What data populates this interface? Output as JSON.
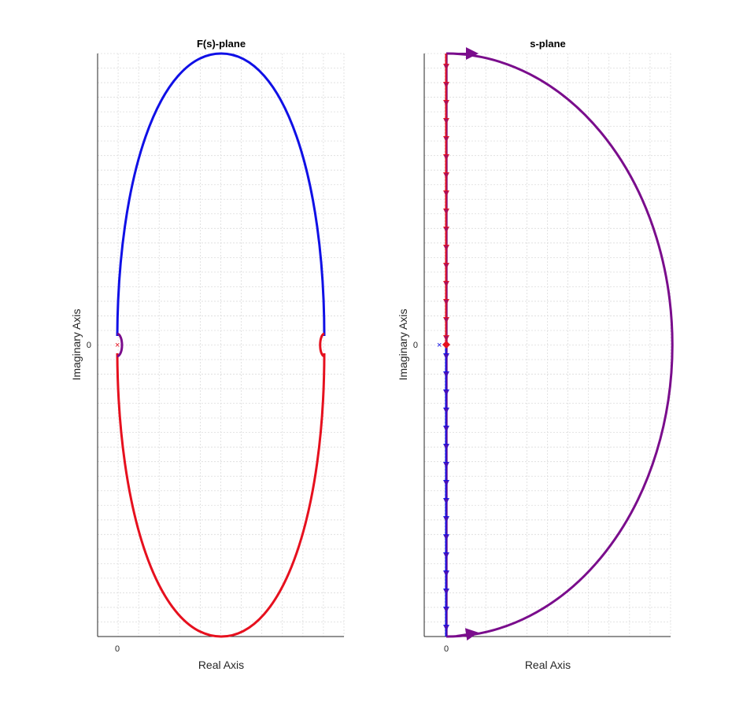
{
  "colors": {
    "positive_branch": "#1010e6",
    "negative_branch": "#e6101e",
    "contour_arc": "#7a0d8c",
    "pole_marker": "#1010e6",
    "fs_pole_marker": "#e6101e",
    "grid": "#dcdcdc",
    "axis": "#262626"
  },
  "chart_data": [
    {
      "type": "line",
      "title": "F(s)-plane",
      "xlabel": "Real Axis",
      "ylabel": "Imaginary Axis",
      "xticks": [
        "0"
      ],
      "yticks": [
        "0"
      ],
      "xlim": [
        -0.1,
        1.1
      ],
      "ylim": [
        -1.0,
        1.0
      ],
      "grid": true,
      "series": [
        {
          "color": "#1010e6",
          "points": [
            [
              0,
              0.02
            ],
            [
              0.02,
              0.4
            ],
            [
              0.1,
              0.75
            ],
            [
              0.25,
              0.96
            ],
            [
              0.5,
              1.0
            ],
            [
              0.75,
              0.96
            ],
            [
              0.9,
              0.75
            ],
            [
              0.98,
              0.4
            ],
            [
              1.0,
              0.02
            ]
          ]
        },
        {
          "color": "#e6101e",
          "points": [
            [
              0,
              -0.02
            ],
            [
              0.02,
              -0.4
            ],
            [
              0.1,
              -0.75
            ],
            [
              0.25,
              -0.96
            ],
            [
              0.5,
              -1.0
            ],
            [
              0.75,
              -0.96
            ],
            [
              0.9,
              -0.75
            ],
            [
              0.98,
              -0.4
            ],
            [
              1.0,
              -0.02
            ]
          ]
        },
        {
          "color": "#7a0d8c",
          "points": [
            [
              0,
              0.03
            ],
            [
              0.02,
              0.02
            ],
            [
              0.02,
              -0.02
            ],
            [
              0,
              -0.03
            ]
          ]
        },
        {
          "color": "#e6101e",
          "points": [
            [
              1.0,
              0.03
            ],
            [
              0.98,
              0.02
            ],
            [
              0.98,
              -0.02
            ],
            [
              1.0,
              -0.03
            ]
          ]
        }
      ],
      "markers": [
        {
          "symbol": "x",
          "color": "#e6101e",
          "x": 0,
          "y": 0
        }
      ]
    },
    {
      "type": "line",
      "title": "s-plane",
      "xlabel": "Real Axis",
      "ylabel": "Imaginary Axis",
      "xticks": [
        "0"
      ],
      "yticks": [
        "0"
      ],
      "xlim": [
        -0.1,
        1.0
      ],
      "ylim": [
        -1.0,
        1.0
      ],
      "grid": true,
      "series": [
        {
          "color": "#e6101e",
          "points": [
            [
              0,
              1.0
            ],
            [
              0,
              0.0
            ]
          ],
          "arrows": "down"
        },
        {
          "color": "#1010e6",
          "points": [
            [
              0,
              0.0
            ],
            [
              0,
              -1.0
            ]
          ],
          "arrows": "down"
        },
        {
          "color": "#7a0d8c",
          "shape": "right-semicircle",
          "radius": 1.0
        },
        {
          "color": "#7a0d8c",
          "points": [
            [
              0,
              1.0
            ],
            [
              0,
              -1.0
            ]
          ],
          "arrows": "down"
        }
      ],
      "markers": [
        {
          "symbol": "x",
          "color": "#1010e6",
          "x": -0.03,
          "y": 0
        },
        {
          "symbol": "diamond",
          "color": "#e6101e",
          "x": 0,
          "y": 0
        }
      ]
    }
  ]
}
